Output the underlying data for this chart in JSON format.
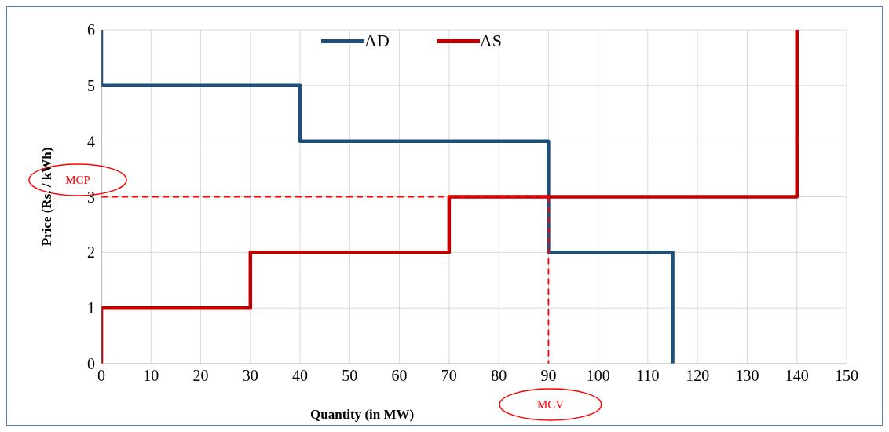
{
  "chart_data": {
    "type": "line",
    "xlabel": "Quantity (in MW)",
    "ylabel": "Price (Rs. / kWh)",
    "xlim": [
      0,
      150
    ],
    "xticks": [
      0,
      10,
      20,
      30,
      40,
      50,
      60,
      70,
      80,
      90,
      100,
      110,
      120,
      130,
      140,
      150
    ],
    "ylim": [
      0,
      6
    ],
    "yticks": [
      0,
      1,
      2,
      3,
      4,
      5,
      6
    ],
    "grid": true,
    "legend": "top",
    "marker": "none",
    "line_style": "solid",
    "series": [
      {
        "name": "AD",
        "color": "#1f4e79",
        "x": [
          0,
          0,
          40,
          40,
          90,
          90,
          115,
          115
        ],
        "values": [
          6,
          5,
          5,
          4,
          4,
          2,
          2,
          0
        ]
      },
      {
        "name": "AS",
        "color": "#c00000",
        "x": [
          0,
          0,
          30,
          30,
          70,
          70,
          140,
          140
        ],
        "values": [
          0,
          1,
          1,
          2,
          2,
          3,
          3,
          6
        ]
      },
      {
        "color": "#ff0000",
        "line_style": "dashed",
        "x": [
          0,
          90
        ],
        "values": [
          3,
          3
        ]
      },
      {
        "color": "#ff0000",
        "line_style": "dashed",
        "x": [
          90,
          90
        ],
        "values": [
          3,
          0
        ]
      }
    ],
    "annotations": [
      "MCP",
      "MCV"
    ]
  }
}
